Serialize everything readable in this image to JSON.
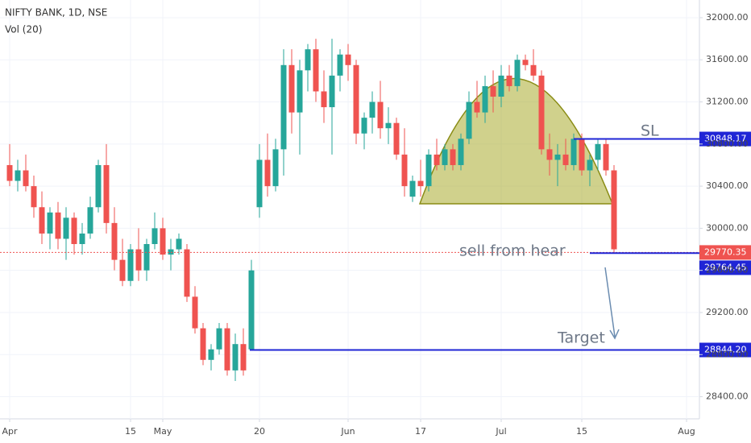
{
  "chart_data": {
    "type": "candlestick",
    "title": "NIFTY BANK, 1D, NSE",
    "subtitle": "Vol (20)",
    "up_color": "#26a69a",
    "down_color": "#ef5350",
    "x": [
      0,
      1,
      2,
      3,
      4,
      5,
      6,
      7,
      8,
      9,
      10,
      11,
      12,
      13,
      14,
      15,
      16,
      17,
      18,
      19,
      20,
      21,
      22,
      23,
      24,
      25,
      26,
      27,
      28,
      29,
      30,
      31,
      32,
      33,
      34,
      35,
      36,
      37,
      38,
      39,
      40,
      41,
      42,
      43,
      44,
      45,
      46,
      47,
      48,
      49,
      50,
      51,
      52,
      53,
      54,
      55,
      56,
      57,
      58,
      59,
      60,
      61,
      62,
      63,
      64,
      65,
      66,
      67,
      68,
      69,
      70,
      71,
      72,
      73,
      74,
      75
    ],
    "open": [
      30600,
      30450,
      30550,
      30400,
      30200,
      29950,
      30150,
      29900,
      30100,
      29850,
      29950,
      30200,
      30600,
      30050,
      29700,
      29500,
      29800,
      29600,
      29850,
      30000,
      29750,
      29800,
      29800,
      29350,
      29050,
      28750,
      28850,
      29050,
      28650,
      28900,
      28850,
      30200,
      30650,
      30400,
      30750,
      31550,
      31100,
      31500,
      31700,
      31300,
      31150,
      31450,
      31650,
      31550,
      30900,
      31050,
      31200,
      30950,
      31000,
      30700,
      30300,
      30450,
      30400,
      30700,
      30600,
      30750,
      30600,
      30850,
      31200,
      31100,
      31350,
      31250,
      31450,
      31350,
      31600,
      31550,
      31450,
      30750,
      30650,
      30700,
      30600,
      30850,
      30550,
      30650,
      30800,
      30550
    ],
    "high": [
      30800,
      30650,
      30700,
      30500,
      30350,
      30200,
      30250,
      30200,
      30150,
      30050,
      30300,
      30650,
      30800,
      30200,
      29900,
      29850,
      30000,
      29900,
      30150,
      30100,
      29900,
      29950,
      29850,
      29450,
      29100,
      28900,
      29100,
      29100,
      29000,
      29050,
      29700,
      30800,
      30900,
      30850,
      31700,
      31700,
      31600,
      31750,
      31800,
      31500,
      31800,
      31700,
      31750,
      31600,
      31100,
      31300,
      31400,
      31150,
      31050,
      30950,
      30500,
      30650,
      30750,
      30850,
      30800,
      30800,
      30900,
      31300,
      31400,
      31450,
      31500,
      31550,
      31550,
      31650,
      31650,
      31700,
      31500,
      30900,
      30800,
      30850,
      30900,
      30900,
      30700,
      30850,
      30850,
      30600
    ],
    "low": [
      30400,
      30350,
      30350,
      30100,
      29850,
      29800,
      29800,
      29700,
      29750,
      29750,
      29900,
      30150,
      29950,
      29600,
      29450,
      29450,
      29500,
      29500,
      29800,
      29700,
      29600,
      29750,
      29300,
      29000,
      28700,
      28650,
      28800,
      28600,
      28550,
      28600,
      28850,
      30100,
      30300,
      30350,
      30500,
      30900,
      30700,
      31300,
      31200,
      31000,
      30700,
      31300,
      31400,
      30800,
      30750,
      30900,
      30850,
      30800,
      30650,
      30300,
      30250,
      30300,
      30350,
      30550,
      30550,
      30550,
      30550,
      30800,
      31050,
      31000,
      31100,
      31150,
      31300,
      31300,
      31500,
      31400,
      30700,
      30500,
      30400,
      30550,
      30550,
      30500,
      30400,
      30550,
      30500,
      29764
    ],
    "close": [
      30450,
      30550,
      30400,
      30200,
      29950,
      30150,
      29900,
      30100,
      29850,
      29950,
      30200,
      30600,
      30050,
      29700,
      29500,
      29800,
      29600,
      29850,
      30000,
      29750,
      29800,
      29900,
      29350,
      29050,
      28750,
      28850,
      29050,
      28650,
      28900,
      28650,
      29600,
      30650,
      30400,
      30750,
      31550,
      31100,
      31500,
      31700,
      31300,
      31150,
      31450,
      31650,
      31550,
      30900,
      31050,
      31200,
      30950,
      31000,
      30700,
      30400,
      30450,
      30400,
      30700,
      30600,
      30750,
      30600,
      30850,
      31200,
      31100,
      31350,
      31250,
      31450,
      31350,
      31600,
      31550,
      31450,
      30750,
      30650,
      30700,
      30600,
      30850,
      30550,
      30650,
      30800,
      30550,
      29800
    ],
    "xlim": [
      -1.2,
      85.6
    ],
    "xticks": [
      {
        "value": 0,
        "label": "Apr"
      },
      15,
      {
        "value": 19,
        "label": "May"
      },
      {
        "value": 31,
        "label": "20"
      },
      {
        "value": 42,
        "label": "Jun"
      },
      {
        "value": 51,
        "label": "17"
      },
      {
        "value": 61,
        "label": "Jul"
      },
      {
        "value": 71,
        "label": "15"
      },
      {
        "value": 84,
        "label": "Aug"
      }
    ],
    "ylim": [
      28190,
      32168
    ],
    "yticks": [
      {
        "value": 28400,
        "label": "28400.00"
      },
      {
        "value": 28800,
        "label": "28800.00"
      },
      {
        "value": 29200,
        "label": "29200.00"
      },
      {
        "value": 29600,
        "label": "29600.00"
      },
      {
        "value": 30000,
        "label": "30000.00"
      },
      {
        "value": 30400,
        "label": "30400.00"
      },
      {
        "value": 30800,
        "label": "30800.00"
      },
      {
        "value": 31200,
        "label": "31200.00"
      },
      {
        "value": 31600,
        "label": "31600.00"
      },
      {
        "value": 32000,
        "label": "32000.00"
      }
    ],
    "grid": true,
    "levels": [
      {
        "value": 30848.17,
        "color": "#1f25d6"
      },
      {
        "value": 29770.35,
        "color": "#ef5350"
      },
      {
        "value": 29764.45,
        "color": "#1f25d6"
      },
      {
        "value": 28844.2,
        "label": "28844.20",
        "color": "#1f25d6"
      }
    ],
    "annotations": [
      "SL",
      "sell from hear",
      "Target"
    ]
  }
}
